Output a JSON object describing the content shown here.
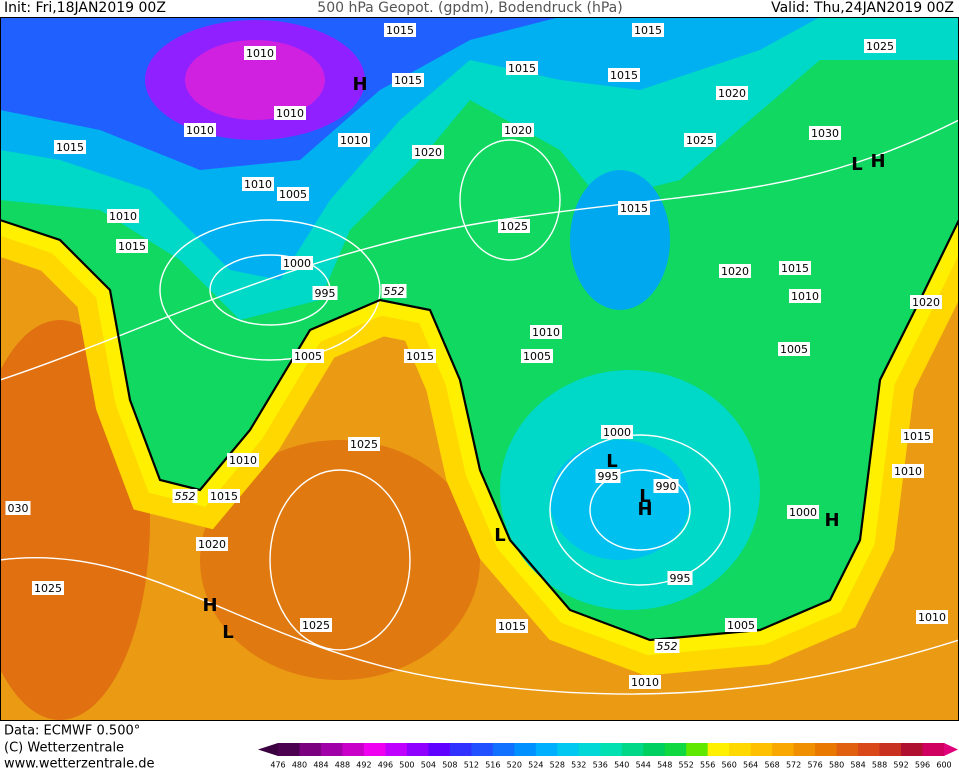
{
  "header": {
    "init": "Init: Fri,18JAN2019 00Z",
    "title": "500 hPa Geopot. (gpdm), Bodendruck (hPa)",
    "valid": "Valid: Thu,24JAN2019 00Z"
  },
  "map": {
    "labels": [
      "1015",
      "1015",
      "1025",
      "1010",
      "1015",
      "1015",
      "1015",
      "H",
      "1020",
      "1010",
      "1010",
      "1020",
      "1025",
      "1030",
      "1015",
      "1010",
      "1020",
      "L",
      "H",
      "1010",
      "1005",
      "1025",
      "1015",
      "1010",
      "1015",
      "1000",
      "1020",
      "1015",
      "995",
      "552",
      "1010",
      "1020",
      "1010",
      "1005",
      "1015",
      "1005",
      "1005",
      "1000",
      "1015",
      "1025",
      "1010",
      "995",
      "L",
      "990",
      "1010",
      "552",
      "1015",
      "030",
      "L",
      "H",
      "1000",
      "H",
      "L",
      "1020",
      "1025",
      "995",
      "H",
      "L",
      "1025",
      "1015",
      "1005",
      "1010",
      "552",
      "1010"
    ]
  },
  "footer": {
    "data": "Data: ECMWF   0.500°",
    "copyright": "(C) Wetterzentrale",
    "url": "www.wetterzentrale.de"
  },
  "colorbar": {
    "ticks": [
      476,
      480,
      484,
      488,
      492,
      496,
      500,
      504,
      508,
      512,
      516,
      520,
      524,
      528,
      532,
      536,
      540,
      544,
      548,
      552,
      556,
      560,
      564,
      568,
      572,
      576,
      580,
      584,
      588,
      592,
      596,
      600
    ]
  }
}
